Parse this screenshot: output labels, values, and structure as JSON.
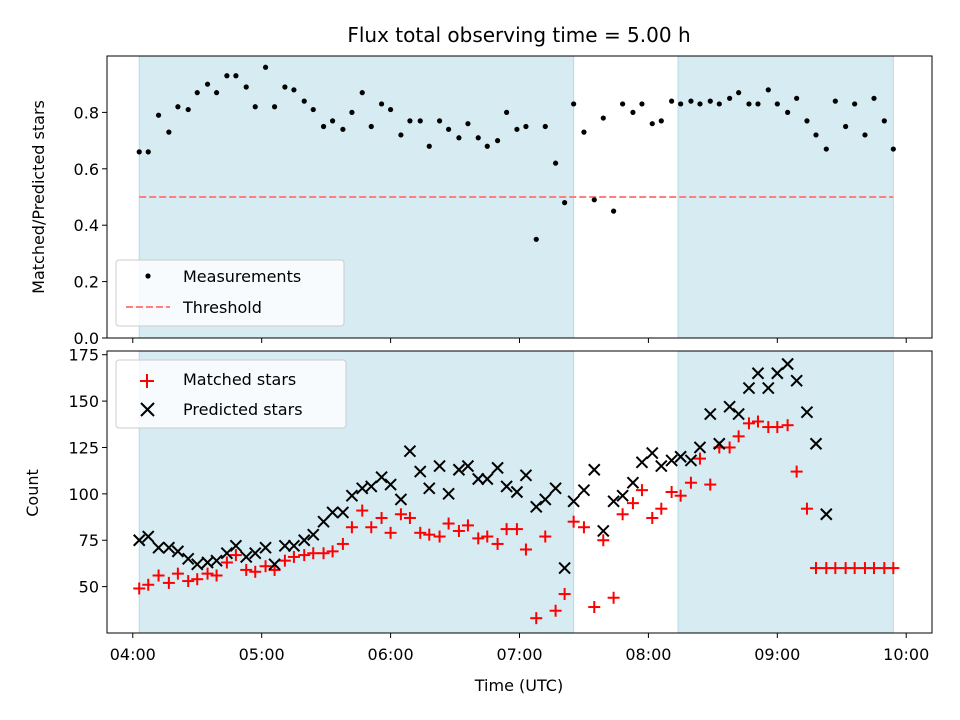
{
  "colors": {
    "observing_band": "#add8e6",
    "measurement": "#000000",
    "threshold": "#ff7f7f",
    "matched": "#ff0000",
    "predicted": "#000000"
  },
  "chart_data": [
    {
      "type": "scatter",
      "title": "Flux total observing time = 5.00 h",
      "xlabel": "",
      "ylabel": "Matched/Predicted stars",
      "x_unit": "hours (UTC)",
      "xlim": [
        3.8,
        10.2
      ],
      "ylim": [
        0.0,
        1.0
      ],
      "yticks": [
        0.0,
        0.2,
        0.4,
        0.6,
        0.8
      ],
      "ytick_labels": [
        "0.0",
        "0.2",
        "0.4",
        "0.6",
        "0.8"
      ],
      "xticks": [
        4,
        5,
        6,
        7,
        8,
        9,
        10
      ],
      "shaded_intervals": [
        [
          4.05,
          7.42
        ],
        [
          8.23,
          9.9
        ]
      ],
      "grid": false,
      "legend_position": "lower-left",
      "threshold": {
        "name": "Threshold",
        "value": 0.5,
        "x_range": [
          4.05,
          9.9
        ]
      },
      "series": [
        {
          "name": "Measurements",
          "x": [
            4.05,
            4.12,
            4.2,
            4.28,
            4.35,
            4.43,
            4.5,
            4.58,
            4.65,
            4.73,
            4.8,
            4.88,
            4.95,
            5.03,
            5.1,
            5.18,
            5.25,
            5.33,
            5.4,
            5.48,
            5.55,
            5.63,
            5.7,
            5.78,
            5.85,
            5.93,
            6.0,
            6.08,
            6.15,
            6.23,
            6.3,
            6.38,
            6.45,
            6.53,
            6.6,
            6.68,
            6.75,
            6.83,
            6.9,
            6.98,
            7.05,
            7.13,
            7.2,
            7.28,
            7.35,
            7.42,
            7.5,
            7.58,
            7.65,
            7.73,
            7.8,
            7.88,
            7.95,
            8.03,
            8.1,
            8.18,
            8.25,
            8.33,
            8.4,
            8.48,
            8.55,
            8.63,
            8.7,
            8.78,
            8.85,
            8.93,
            9.0,
            9.08,
            9.15,
            9.23,
            9.3,
            9.38,
            9.45,
            9.53,
            9.6,
            9.68,
            9.75,
            9.83,
            9.9
          ],
          "y": [
            0.66,
            0.66,
            0.79,
            0.73,
            0.82,
            0.81,
            0.87,
            0.9,
            0.87,
            0.93,
            0.93,
            0.89,
            0.82,
            0.96,
            0.82,
            0.89,
            0.88,
            0.84,
            0.81,
            0.75,
            0.77,
            0.74,
            0.8,
            0.87,
            0.75,
            0.83,
            0.81,
            0.72,
            0.77,
            0.77,
            0.68,
            0.77,
            0.74,
            0.71,
            0.76,
            0.71,
            0.68,
            0.7,
            0.8,
            0.74,
            0.75,
            0.35,
            0.75,
            0.62,
            0.48,
            0.83,
            0.73,
            0.49,
            0.78,
            0.45,
            0.83,
            0.8,
            0.83,
            0.76,
            0.77,
            0.84,
            0.83,
            0.84,
            0.83,
            0.84,
            0.83,
            0.85,
            0.87,
            0.83,
            0.83,
            0.88,
            0.83,
            0.8,
            0.85,
            0.77,
            0.72,
            0.67,
            0.84,
            0.75,
            0.83,
            0.72,
            0.85,
            0.77,
            0.67
          ]
        }
      ]
    },
    {
      "type": "scatter",
      "title": "",
      "xlabel": "Time (UTC)",
      "ylabel": "Count",
      "xlim": [
        3.8,
        10.2
      ],
      "ylim": [
        25,
        177
      ],
      "yticks": [
        50,
        75,
        100,
        125,
        150,
        175
      ],
      "ytick_labels": [
        "50",
        "75",
        "100",
        "125",
        "150",
        "175"
      ],
      "xticks": [
        4,
        5,
        6,
        7,
        8,
        9,
        10
      ],
      "xtick_labels": [
        "04:00",
        "05:00",
        "06:00",
        "07:00",
        "08:00",
        "09:00",
        "10:00"
      ],
      "shaded_intervals": [
        [
          4.05,
          7.42
        ],
        [
          8.23,
          9.9
        ]
      ],
      "grid": false,
      "legend_position": "upper-left",
      "series": [
        {
          "name": "Matched stars",
          "x": [
            4.05,
            4.12,
            4.2,
            4.28,
            4.35,
            4.43,
            4.5,
            4.58,
            4.65,
            4.73,
            4.8,
            4.88,
            4.95,
            5.03,
            5.1,
            5.18,
            5.25,
            5.33,
            5.4,
            5.48,
            5.55,
            5.63,
            5.7,
            5.78,
            5.85,
            5.93,
            6.0,
            6.08,
            6.15,
            6.23,
            6.3,
            6.38,
            6.45,
            6.53,
            6.6,
            6.68,
            6.75,
            6.83,
            6.9,
            6.98,
            7.05,
            7.13,
            7.2,
            7.28,
            7.35,
            7.42,
            7.5,
            7.58,
            7.65,
            7.73,
            7.8,
            7.88,
            7.95,
            8.03,
            8.1,
            8.18,
            8.25,
            8.33,
            8.4,
            8.48,
            8.55,
            8.63,
            8.7,
            8.78,
            8.85,
            8.93,
            9.0,
            9.08,
            9.15,
            9.23,
            9.3,
            9.38,
            9.45,
            9.53,
            9.6,
            9.68,
            9.75,
            9.83,
            9.9
          ],
          "y": [
            49,
            51,
            56,
            52,
            57,
            53,
            54,
            57,
            56,
            63,
            67,
            59,
            58,
            61,
            59,
            64,
            66,
            67,
            68,
            68,
            69,
            73,
            82,
            91,
            82,
            87,
            79,
            89,
            87,
            79,
            78,
            77,
            84,
            80,
            83,
            76,
            77,
            73,
            81,
            81,
            70,
            33,
            77,
            37,
            46,
            85,
            82,
            39,
            75,
            44,
            89,
            95,
            102,
            87,
            92,
            101,
            99,
            106,
            119,
            105,
            125,
            125,
            131,
            138,
            139,
            136,
            136,
            137,
            112,
            92,
            60,
            60,
            60,
            60,
            60,
            60,
            60,
            60,
            60
          ],
          "y_note": ""
        },
        {
          "name": "Predicted stars",
          "x": [],
          "y": []
        }
      ]
    }
  ]
}
